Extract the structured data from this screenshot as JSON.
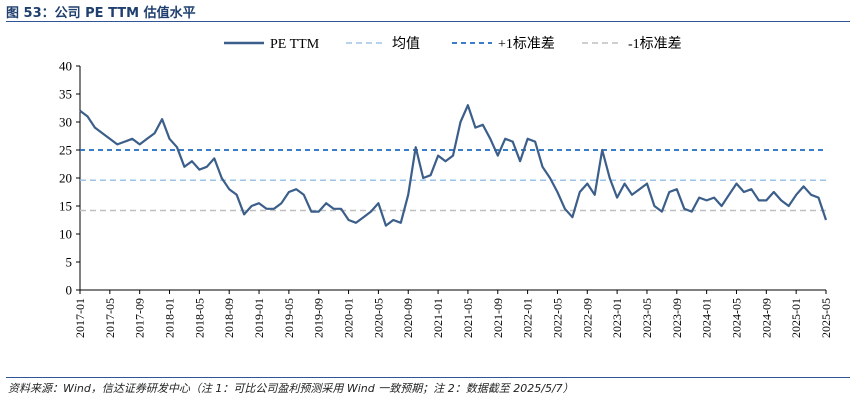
{
  "header": {
    "title": "图 53：公司 PE TTM 估值水平"
  },
  "footer": {
    "source": "资料来源：Wind，信达证券研发中心（注 1：可比公司盈利预测采用 Wind 一致预期；注 2：数据截至 2025/5/7）"
  },
  "colors": {
    "pe": "#3b5f8a",
    "mean": "#9dc3e6",
    "plus1": "#1f6bc0",
    "minus1": "#bfbfbf",
    "accent": "#2f5597"
  },
  "chart_data": {
    "type": "line",
    "title": "",
    "xlabel": "",
    "ylabel": "",
    "ylim": [
      0,
      40
    ],
    "yticks": [
      "0",
      "5",
      "10",
      "15",
      "20",
      "25",
      "30",
      "35",
      "40"
    ],
    "x_range": [
      "2017-01",
      "2025-05"
    ],
    "x_ticks": [
      "2017-01",
      "2017-05",
      "2017-09",
      "2018-01",
      "2018-05",
      "2018-09",
      "2019-01",
      "2019-05",
      "2019-09",
      "2020-01",
      "2020-05",
      "2020-09",
      "2021-01",
      "2021-05",
      "2021-09",
      "2022-01",
      "2022-05",
      "2022-09",
      "2023-01",
      "2023-05",
      "2023-09",
      "2024-01",
      "2024-05",
      "2024-09",
      "2025-01",
      "2025-05"
    ],
    "legend_position": "top",
    "grid": false,
    "series": [
      {
        "name": "PE TTM",
        "style": "solid",
        "x": [
          "2017-01",
          "2017-02",
          "2017-03",
          "2017-04",
          "2017-05",
          "2017-06",
          "2017-07",
          "2017-08",
          "2017-09",
          "2017-10",
          "2017-11",
          "2017-12",
          "2018-01",
          "2018-02",
          "2018-03",
          "2018-04",
          "2018-05",
          "2018-06",
          "2018-07",
          "2018-08",
          "2018-09",
          "2018-10",
          "2018-11",
          "2018-12",
          "2019-01",
          "2019-02",
          "2019-03",
          "2019-04",
          "2019-05",
          "2019-06",
          "2019-07",
          "2019-08",
          "2019-09",
          "2019-10",
          "2019-11",
          "2019-12",
          "2020-01",
          "2020-02",
          "2020-03",
          "2020-04",
          "2020-05",
          "2020-06",
          "2020-07",
          "2020-08",
          "2020-09",
          "2020-10",
          "2020-11",
          "2020-12",
          "2021-01",
          "2021-02",
          "2021-03",
          "2021-04",
          "2021-05",
          "2021-06",
          "2021-07",
          "2021-08",
          "2021-09",
          "2021-10",
          "2021-11",
          "2021-12",
          "2022-01",
          "2022-02",
          "2022-03",
          "2022-04",
          "2022-05",
          "2022-06",
          "2022-07",
          "2022-08",
          "2022-09",
          "2022-10",
          "2022-11",
          "2022-12",
          "2023-01",
          "2023-02",
          "2023-03",
          "2023-04",
          "2023-05",
          "2023-06",
          "2023-07",
          "2023-08",
          "2023-09",
          "2023-10",
          "2023-11",
          "2023-12",
          "2024-01",
          "2024-02",
          "2024-03",
          "2024-04",
          "2024-05",
          "2024-06",
          "2024-07",
          "2024-08",
          "2024-09",
          "2024-10",
          "2024-11",
          "2024-12",
          "2025-01",
          "2025-02",
          "2025-03",
          "2025-04",
          "2025-05"
        ],
        "values": [
          32,
          31,
          29,
          28,
          27,
          26,
          26.5,
          27,
          26,
          27,
          28,
          30.5,
          27,
          25.5,
          22,
          23,
          21.5,
          22,
          23.5,
          20,
          18,
          17,
          13.5,
          15,
          15.5,
          14.5,
          14.5,
          15.5,
          17.5,
          18,
          17,
          14,
          14,
          15.5,
          14.5,
          14.5,
          12.5,
          12,
          13,
          14,
          15.5,
          11.5,
          12.5,
          12,
          17,
          25.5,
          20,
          20.5,
          24,
          23,
          24,
          30,
          33,
          29,
          29.5,
          27,
          24,
          27,
          26.5,
          23,
          27,
          26.5,
          22,
          20,
          17.5,
          14.5,
          13,
          17.5,
          19,
          17,
          25,
          20,
          16.5,
          19,
          17,
          18,
          19,
          15,
          14,
          17.5,
          18,
          14.5,
          14,
          16.5,
          16,
          16.5,
          15,
          17,
          19,
          17.5,
          18,
          16,
          16,
          17.5,
          16,
          15,
          17,
          18.5,
          17,
          16.5,
          12.5
        ]
      },
      {
        "name": "均值",
        "style": "dashed",
        "value": 19.6
      },
      {
        "name": "+1标准差",
        "style": "dashed",
        "value": 25.0
      },
      {
        "name": "-1标准差",
        "style": "dashed",
        "value": 14.2
      }
    ]
  }
}
